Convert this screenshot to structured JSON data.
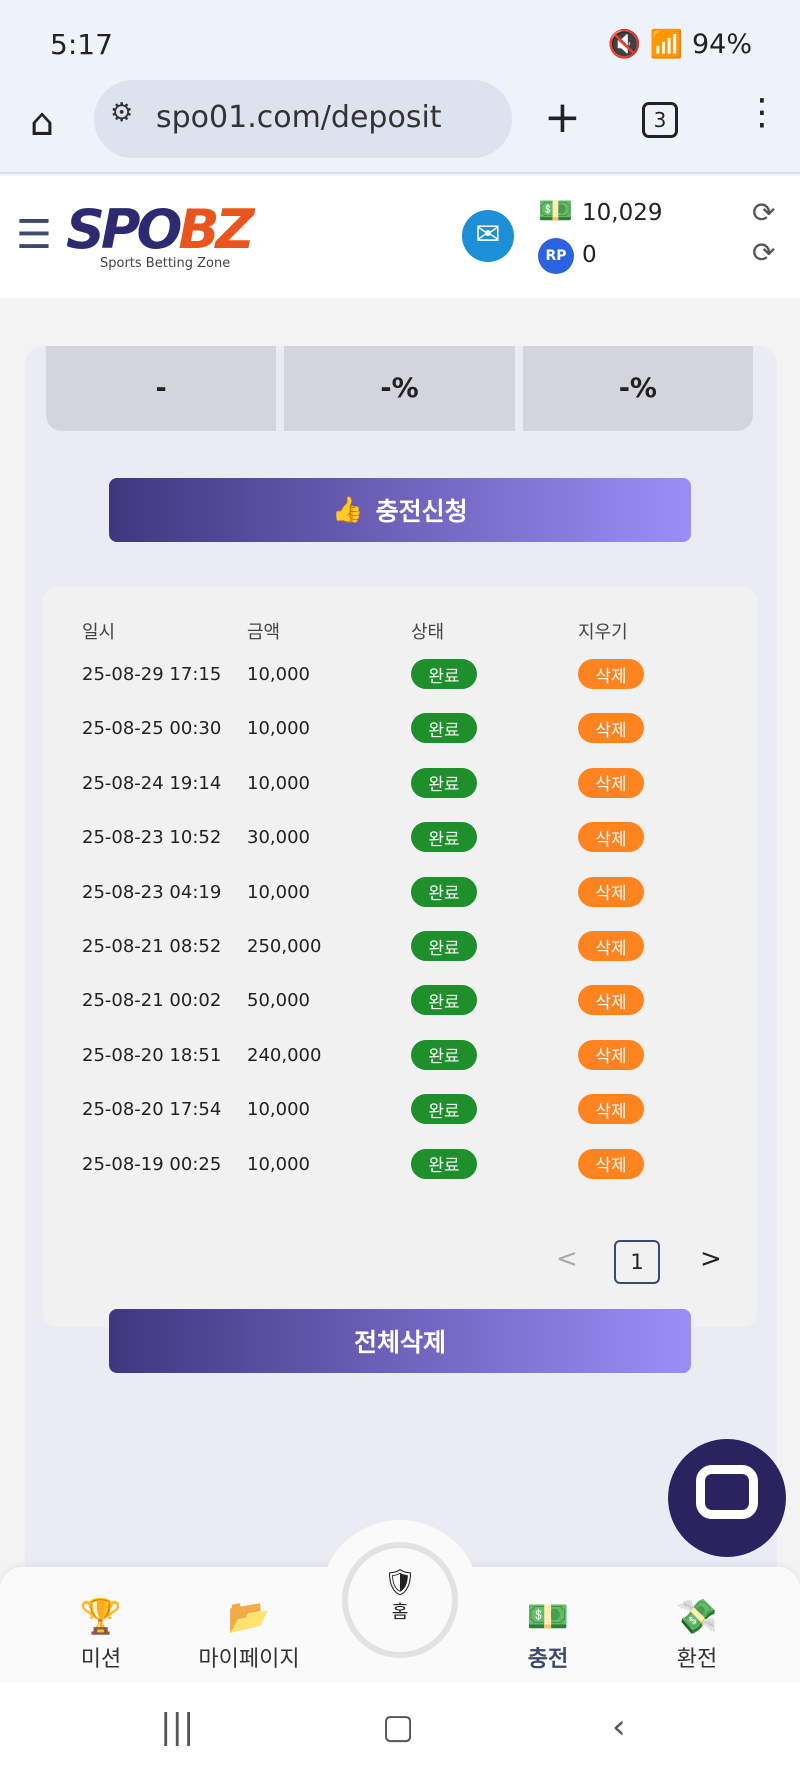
{
  "status": {
    "time": "5:17",
    "battery": "94%"
  },
  "browser": {
    "url": "spo01.com/deposit",
    "tabs": "3"
  },
  "header": {
    "logo_a": "SPO",
    "logo_b": "BZ",
    "tagline": "Sports Betting Zone",
    "money": "10,029",
    "points": "0"
  },
  "stats": [
    "-",
    "-%",
    "-%"
  ],
  "apply_label": "충전신청",
  "table": {
    "headers": [
      "일시",
      "금액",
      "상태",
      "지우기"
    ],
    "rows": [
      {
        "date": "25-08-29 17:15",
        "amount": "10,000",
        "status": "완료",
        "action": "삭제"
      },
      {
        "date": "25-08-25 00:30",
        "amount": "10,000",
        "status": "완료",
        "action": "삭제"
      },
      {
        "date": "25-08-24 19:14",
        "amount": "10,000",
        "status": "완료",
        "action": "삭제"
      },
      {
        "date": "25-08-23 10:52",
        "amount": "30,000",
        "status": "완료",
        "action": "삭제"
      },
      {
        "date": "25-08-23 04:19",
        "amount": "10,000",
        "status": "완료",
        "action": "삭제"
      },
      {
        "date": "25-08-21 08:52",
        "amount": "250,000",
        "status": "완료",
        "action": "삭제"
      },
      {
        "date": "25-08-21 00:02",
        "amount": "50,000",
        "status": "완료",
        "action": "삭제"
      },
      {
        "date": "25-08-20 18:51",
        "amount": "240,000",
        "status": "완료",
        "action": "삭제"
      },
      {
        "date": "25-08-20 17:54",
        "amount": "10,000",
        "status": "완료",
        "action": "삭제"
      },
      {
        "date": "25-08-19 00:25",
        "amount": "10,000",
        "status": "완료",
        "action": "삭제"
      }
    ]
  },
  "pagination": {
    "current": "1",
    "prev": "<",
    "next": ">"
  },
  "delete_all_label": "전체삭제",
  "nav": {
    "mission": "미션",
    "mypage": "마이페이지",
    "home": "홈",
    "deposit": "충전",
    "withdraw": "환전"
  },
  "colors": {
    "complete": "#1f8f2c",
    "delete": "#ff8420",
    "accent": "#40367f"
  }
}
